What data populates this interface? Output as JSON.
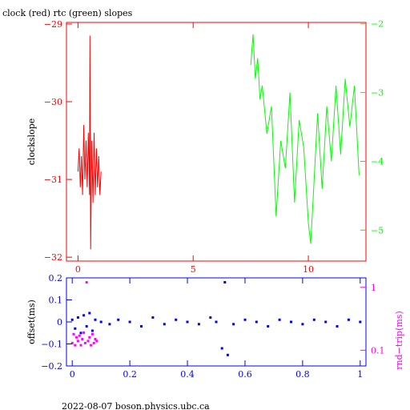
{
  "title": "clock (red) rtc (green) slopes",
  "footer": "2022-08-07 boson.physics.ubc.ca",
  "chart_data": [
    {
      "type": "line",
      "ylabel": "clockslope",
      "axis_colors": {
        "frame": "#ff0000",
        "left": "#ff0000",
        "bottom": "#ff0000",
        "right": "#00ff00"
      },
      "xlim": [
        -0.5,
        12.5
      ],
      "ylim": [
        -32.05,
        -28.98
      ],
      "xticks": [
        {
          "v": 0,
          "label": "0"
        },
        {
          "v": 5,
          "label": "5"
        },
        {
          "v": 10,
          "label": "10"
        }
      ],
      "yticks": [
        {
          "v": -29,
          "label": "−29"
        },
        {
          "v": -30,
          "label": "−30"
        },
        {
          "v": -31,
          "label": "−31"
        },
        {
          "v": -32,
          "label": "−32"
        }
      ],
      "y2lim": [
        -5.45,
        -1.98
      ],
      "y2ticks": [
        {
          "v": -2,
          "label": "−2"
        },
        {
          "v": -3,
          "label": "−3"
        },
        {
          "v": -4,
          "label": "−4"
        },
        {
          "v": -5,
          "label": "−5"
        }
      ],
      "series": [
        {
          "color": "#ff0000",
          "axis": "left",
          "x": [
            0.0,
            0.05,
            0.1,
            0.15,
            0.2,
            0.25,
            0.3,
            0.35,
            0.4,
            0.45,
            0.5,
            0.52,
            0.55,
            0.6,
            0.65,
            0.7,
            0.75,
            0.8,
            0.85,
            0.9,
            0.95,
            1.0
          ],
          "y": [
            -30.9,
            -30.6,
            -31.1,
            -30.7,
            -31.2,
            -30.3,
            -31.0,
            -30.5,
            -31.1,
            -30.4,
            -31.2,
            -29.15,
            -31.9,
            -30.5,
            -31.3,
            -30.4,
            -31.2,
            -30.6,
            -31.1,
            -30.7,
            -31.2,
            -30.9
          ]
        },
        {
          "color": "#00ff00",
          "axis": "right",
          "x": [
            7.5,
            7.6,
            7.7,
            7.8,
            7.9,
            8.0,
            8.2,
            8.4,
            8.6,
            8.8,
            9.0,
            9.2,
            9.4,
            9.6,
            9.8,
            10.0,
            10.1,
            10.2,
            10.4,
            10.6,
            10.8,
            11.0,
            11.2,
            11.4,
            11.6,
            11.8,
            12.0,
            12.2
          ],
          "y": [
            -2.6,
            -2.15,
            -2.8,
            -2.5,
            -3.1,
            -2.9,
            -3.6,
            -3.2,
            -4.8,
            -3.7,
            -4.1,
            -3.0,
            -4.6,
            -3.4,
            -3.8,
            -4.9,
            -5.2,
            -4.6,
            -3.3,
            -4.4,
            -3.2,
            -4.0,
            -2.9,
            -3.9,
            -2.8,
            -3.5,
            -2.9,
            -4.2
          ]
        }
      ]
    },
    {
      "type": "scatter",
      "ylabel": "offset(ms)",
      "y2label": "rnd−trip(ms)",
      "axis_colors": {
        "frame": "#0000ff",
        "left": "#0000ff",
        "bottom": "#0000ff",
        "right": "#ff00ff"
      },
      "xlim": [
        -0.02,
        1.02
      ],
      "ylim": [
        -0.2,
        0.2
      ],
      "xticks": [
        {
          "v": 0,
          "label": "0"
        },
        {
          "v": 0.2,
          "label": "0.2"
        },
        {
          "v": 0.4,
          "label": "0.4"
        },
        {
          "v": 0.6,
          "label": "0.6"
        },
        {
          "v": 0.8,
          "label": "0.8"
        },
        {
          "v": 1.0,
          "label": "1"
        }
      ],
      "yticks": [
        {
          "v": 0.2,
          "label": "0.2"
        },
        {
          "v": 0.1,
          "label": "0.1"
        },
        {
          "v": 0,
          "label": "0"
        },
        {
          "v": -0.1,
          "label": "−0.1"
        },
        {
          "v": -0.2,
          "label": "−0.2"
        }
      ],
      "y2scale": "log",
      "y2lim": [
        0.0562,
        1.413
      ],
      "y2ticks": [
        {
          "v": 1,
          "label": "1"
        },
        {
          "v": 0.1,
          "label": "0.1"
        }
      ],
      "series": [
        {
          "color": "#0000ff",
          "axis": "left",
          "x": [
            0.0,
            0.01,
            0.02,
            0.03,
            0.04,
            0.05,
            0.06,
            0.07,
            0.08,
            0.1,
            0.13,
            0.16,
            0.2,
            0.24,
            0.28,
            0.32,
            0.36,
            0.4,
            0.44,
            0.48,
            0.5,
            0.52,
            0.53,
            0.54,
            0.56,
            0.6,
            0.64,
            0.68,
            0.72,
            0.76,
            0.8,
            0.84,
            0.88,
            0.92,
            0.96,
            1.0
          ],
          "y": [
            0.01,
            -0.03,
            0.02,
            -0.05,
            0.03,
            -0.02,
            0.04,
            -0.04,
            0.01,
            0.0,
            -0.01,
            0.01,
            0.0,
            -0.02,
            0.02,
            -0.01,
            0.01,
            0.0,
            -0.01,
            0.02,
            0.0,
            -0.12,
            0.18,
            -0.15,
            -0.01,
            0.01,
            0.0,
            -0.02,
            0.01,
            0.0,
            -0.01,
            0.01,
            0.0,
            -0.02,
            0.01,
            0.0
          ]
        },
        {
          "color": "#ff00ff",
          "axis": "right",
          "x": [
            0.0,
            0.005,
            0.01,
            0.015,
            0.02,
            0.025,
            0.03,
            0.035,
            0.04,
            0.045,
            0.05,
            0.055,
            0.06,
            0.065,
            0.07,
            0.075,
            0.08,
            0.085
          ],
          "y": [
            0.13,
            0.18,
            0.12,
            0.16,
            0.14,
            0.17,
            0.12,
            0.15,
            0.19,
            0.13,
            1.2,
            0.14,
            0.16,
            0.12,
            0.18,
            0.13,
            0.15,
            0.14
          ]
        }
      ]
    }
  ]
}
